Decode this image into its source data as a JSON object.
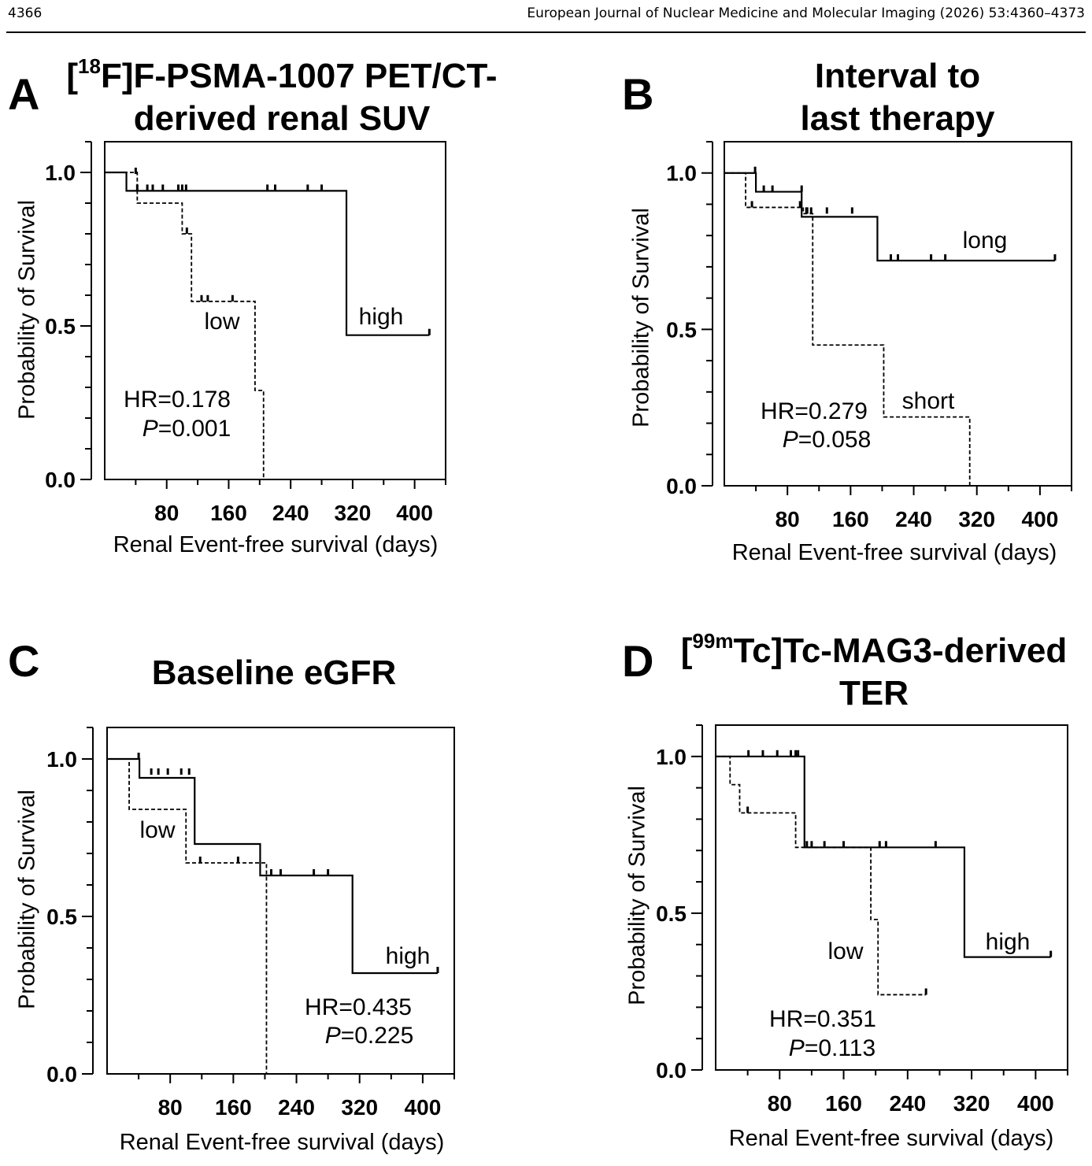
{
  "header": {
    "page_number": "4366",
    "journal": "European Journal of Nuclear Medicine and Molecular Imaging (2026) 53:4360–4373"
  },
  "chart_data": [
    {
      "type": "line",
      "panel": "A",
      "title_parts": [
        "[",
        "18",
        "F]F-PSMA-1007 PET/CT-",
        "derived renal SUV"
      ],
      "xlabel": "Renal Event-free survival (days)",
      "ylabel": "Probability of Survival",
      "xlim": [
        0,
        440
      ],
      "ylim": [
        0,
        1.1
      ],
      "xticks": [
        80,
        160,
        240,
        320,
        400
      ],
      "yticks": [
        0.0,
        0.5,
        1.0
      ],
      "ytick_labels": [
        "0.0",
        "0.5",
        "1.0"
      ],
      "hr": "HR=0.178",
      "p_label": "P",
      "p_value": "=0.001",
      "series": [
        {
          "name": "high",
          "style": "solid",
          "steps": [
            [
              0,
              1.0
            ],
            [
              28,
              0.94
            ],
            [
              312,
              0.47
            ],
            [
              419,
              0.47
            ]
          ],
          "censor": [
            [
              42,
              0.94
            ],
            [
              55,
              0.94
            ],
            [
              62,
              0.94
            ],
            [
              75,
              0.94
            ],
            [
              95,
              0.94
            ],
            [
              100,
              0.94
            ],
            [
              105,
              0.94
            ],
            [
              210,
              0.94
            ],
            [
              220,
              0.94
            ],
            [
              262,
              0.94
            ],
            [
              280,
              0.94
            ],
            [
              419,
              0.47
            ]
          ]
        },
        {
          "name": "low",
          "style": "dashed",
          "steps": [
            [
              0,
              1.0
            ],
            [
              42,
              0.9
            ],
            [
              100,
              0.8
            ],
            [
              112,
              0.58
            ],
            [
              194,
              0.29
            ],
            [
              205,
              0.0
            ]
          ],
          "censor": [
            [
              40,
              0.995
            ],
            [
              106,
              0.8
            ],
            [
              125,
              0.58
            ],
            [
              133,
              0.58
            ],
            [
              165,
              0.58
            ]
          ]
        }
      ]
    },
    {
      "type": "line",
      "panel": "B",
      "title_parts": [
        "Interval to",
        "last therapy"
      ],
      "xlabel": "Renal Event-free survival (days)",
      "ylabel": "Probability of Survival",
      "xlim": [
        0,
        440
      ],
      "ylim": [
        0,
        1.1
      ],
      "xticks": [
        80,
        160,
        240,
        320,
        400
      ],
      "yticks": [
        0.0,
        0.5,
        1.0
      ],
      "ytick_labels": [
        "0.0",
        "0.5",
        "1.0"
      ],
      "hr": "HR=0.279",
      "p_label": "P",
      "p_value": "=0.058",
      "series": [
        {
          "name": "long",
          "style": "solid",
          "steps": [
            [
              0,
              1.0
            ],
            [
              40,
              0.94
            ],
            [
              98,
              0.86
            ],
            [
              194,
              0.72
            ],
            [
              419,
              0.72
            ]
          ],
          "censor": [
            [
              39,
              1.0
            ],
            [
              50,
              0.94
            ],
            [
              61,
              0.94
            ],
            [
              98,
              0.94
            ],
            [
              105,
              0.87
            ],
            [
              110,
              0.87
            ],
            [
              130,
              0.87
            ],
            [
              162,
              0.87
            ],
            [
              211,
              0.72
            ],
            [
              220,
              0.72
            ],
            [
              262,
              0.72
            ],
            [
              280,
              0.72
            ],
            [
              419,
              0.72
            ]
          ]
        },
        {
          "name": "short",
          "style": "dashed",
          "steps": [
            [
              0,
              1.0
            ],
            [
              27,
              0.89
            ],
            [
              100,
              0.87
            ],
            [
              112,
              0.45
            ],
            [
              202,
              0.22
            ],
            [
              311,
              0.0
            ]
          ],
          "censor": [
            [
              35,
              0.89
            ],
            [
              96,
              0.89
            ],
            [
              104,
              0.87
            ]
          ]
        }
      ]
    },
    {
      "type": "line",
      "panel": "C",
      "title_parts": [
        "Baseline eGFR"
      ],
      "xlabel": "Renal Event-free survival (days)",
      "ylabel": "Probability of Survival",
      "xlim": [
        0,
        440
      ],
      "ylim": [
        0,
        1.1
      ],
      "xticks": [
        80,
        160,
        240,
        320,
        400
      ],
      "yticks": [
        0.0,
        0.5,
        1.0
      ],
      "ytick_labels": [
        "0.0",
        "0.5",
        "1.0"
      ],
      "hr": "HR=0.435",
      "p_label": "P",
      "p_value": "=0.225",
      "series": [
        {
          "name": "high",
          "style": "solid",
          "steps": [
            [
              0,
              1.0
            ],
            [
              41,
              0.94
            ],
            [
              111,
              0.73
            ],
            [
              194,
              0.63
            ],
            [
              311,
              0.32
            ],
            [
              419,
              0.32
            ]
          ],
          "censor": [
            [
              40,
              1.0
            ],
            [
              56,
              0.95
            ],
            [
              65,
              0.95
            ],
            [
              77,
              0.95
            ],
            [
              94,
              0.95
            ],
            [
              104,
              0.95
            ],
            [
              208,
              0.63
            ],
            [
              220,
              0.63
            ],
            [
              262,
              0.63
            ],
            [
              280,
              0.63
            ],
            [
              419,
              0.32
            ]
          ]
        },
        {
          "name": "low",
          "style": "dashed",
          "steps": [
            [
              0,
              1.0
            ],
            [
              28,
              0.84
            ],
            [
              100,
              0.67
            ],
            [
              202,
              0.0
            ]
          ],
          "censor": [
            [
              118,
              0.67
            ],
            [
              166,
              0.67
            ]
          ]
        }
      ]
    },
    {
      "type": "line",
      "panel": "D",
      "title_parts": [
        "[",
        "99m",
        "Tc]Tc-MAG3-derived",
        "TER"
      ],
      "xlabel": "Renal Event-free survival (days)",
      "ylabel": "Probability of Survival",
      "xlim": [
        0,
        440
      ],
      "ylim": [
        0,
        1.1
      ],
      "xticks": [
        80,
        160,
        240,
        320,
        400
      ],
      "yticks": [
        0.0,
        0.5,
        1.0
      ],
      "ytick_labels": [
        "0.0",
        "0.5",
        "1.0"
      ],
      "hr": "HR=0.351",
      "p_label": "P",
      "p_value": "=0.113",
      "series": [
        {
          "name": "high",
          "style": "solid",
          "steps": [
            [
              0,
              1.0
            ],
            [
              111,
              0.71
            ],
            [
              311,
              0.36
            ],
            [
              419,
              0.36
            ]
          ],
          "censor": [
            [
              41,
              1.0
            ],
            [
              59,
              1.0
            ],
            [
              77,
              1.0
            ],
            [
              94,
              1.0
            ],
            [
              100,
              1.0
            ],
            [
              103,
              1.0
            ],
            [
              114,
              0.71
            ],
            [
              120,
              0.71
            ],
            [
              136,
              0.71
            ],
            [
              160,
              0.71
            ],
            [
              205,
              0.71
            ],
            [
              213,
              0.71
            ],
            [
              275,
              0.71
            ],
            [
              419,
              0.36
            ]
          ]
        },
        {
          "name": "low",
          "style": "dashed",
          "steps": [
            [
              0,
              1.0
            ],
            [
              18,
              0.91
            ],
            [
              30,
              0.82
            ],
            [
              100,
              0.71
            ],
            [
              194,
              0.48
            ],
            [
              203,
              0.24
            ],
            [
              263,
              0.24
            ]
          ],
          "censor": [
            [
              40,
              0.82
            ],
            [
              263,
              0.24
            ]
          ]
        }
      ]
    }
  ]
}
